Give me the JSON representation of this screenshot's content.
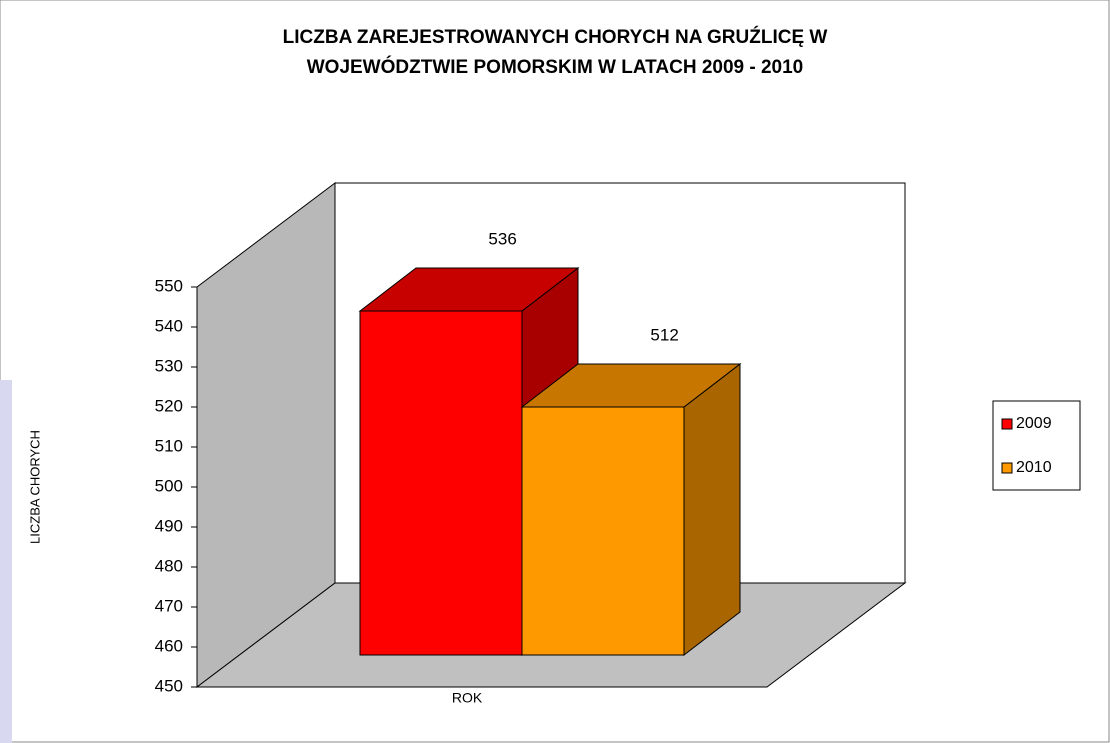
{
  "chart_data": {
    "type": "bar3d",
    "title": [
      "LICZBA ZAREJESTROWANYCH CHORYCH NA GRUŹLICĘ W",
      "WOJEWÓDZTWIE POMORSKIM W LATACH 2009 - 2010"
    ],
    "x_label": "ROK",
    "y_label": "LICZBA CHORYCH",
    "categories": [
      null
    ],
    "series": [
      {
        "name": "2009",
        "color": "#ff0000",
        "values": [
          536
        ]
      },
      {
        "name": "2010",
        "color": "#ff9900",
        "values": [
          512
        ]
      }
    ],
    "ylim": [
      450,
      550
    ],
    "yticks": [
      450,
      460,
      470,
      480,
      490,
      500,
      510,
      520,
      530,
      540,
      550
    ],
    "grid": false,
    "legend": "right"
  }
}
